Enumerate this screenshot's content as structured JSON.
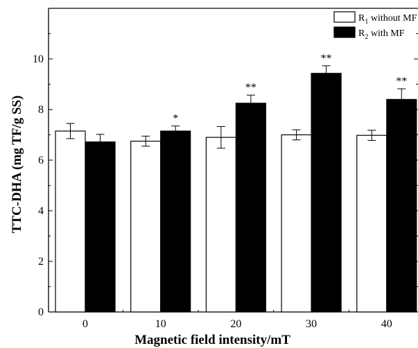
{
  "chart_data": {
    "type": "bar",
    "xlabel": "Magnetic field intensity/mT",
    "ylabel": "TTC-DHA (mg TF/g SS)",
    "categories": [
      "0",
      "10",
      "20",
      "30",
      "40"
    ],
    "ylim": [
      0,
      12
    ],
    "yticks": [
      0,
      2,
      4,
      6,
      8,
      10
    ],
    "series": [
      {
        "name_prefix": "R",
        "name_subscript": "1",
        "name_suffix": " without MF",
        "fill": "#ffffff",
        "values": [
          7.15,
          6.75,
          6.9,
          7.0,
          6.98
        ],
        "errors": [
          0.3,
          0.2,
          0.43,
          0.2,
          0.2
        ]
      },
      {
        "name_prefix": "R",
        "name_subscript": "2",
        "name_suffix": " with MF",
        "fill": "#000000",
        "values": [
          6.72,
          7.15,
          8.25,
          9.43,
          8.4
        ],
        "errors": [
          0.3,
          0.2,
          0.32,
          0.3,
          0.42
        ],
        "significance": [
          "",
          "*",
          "**",
          "**",
          "**"
        ]
      }
    ],
    "legend_position": "top-right",
    "grid": false
  }
}
